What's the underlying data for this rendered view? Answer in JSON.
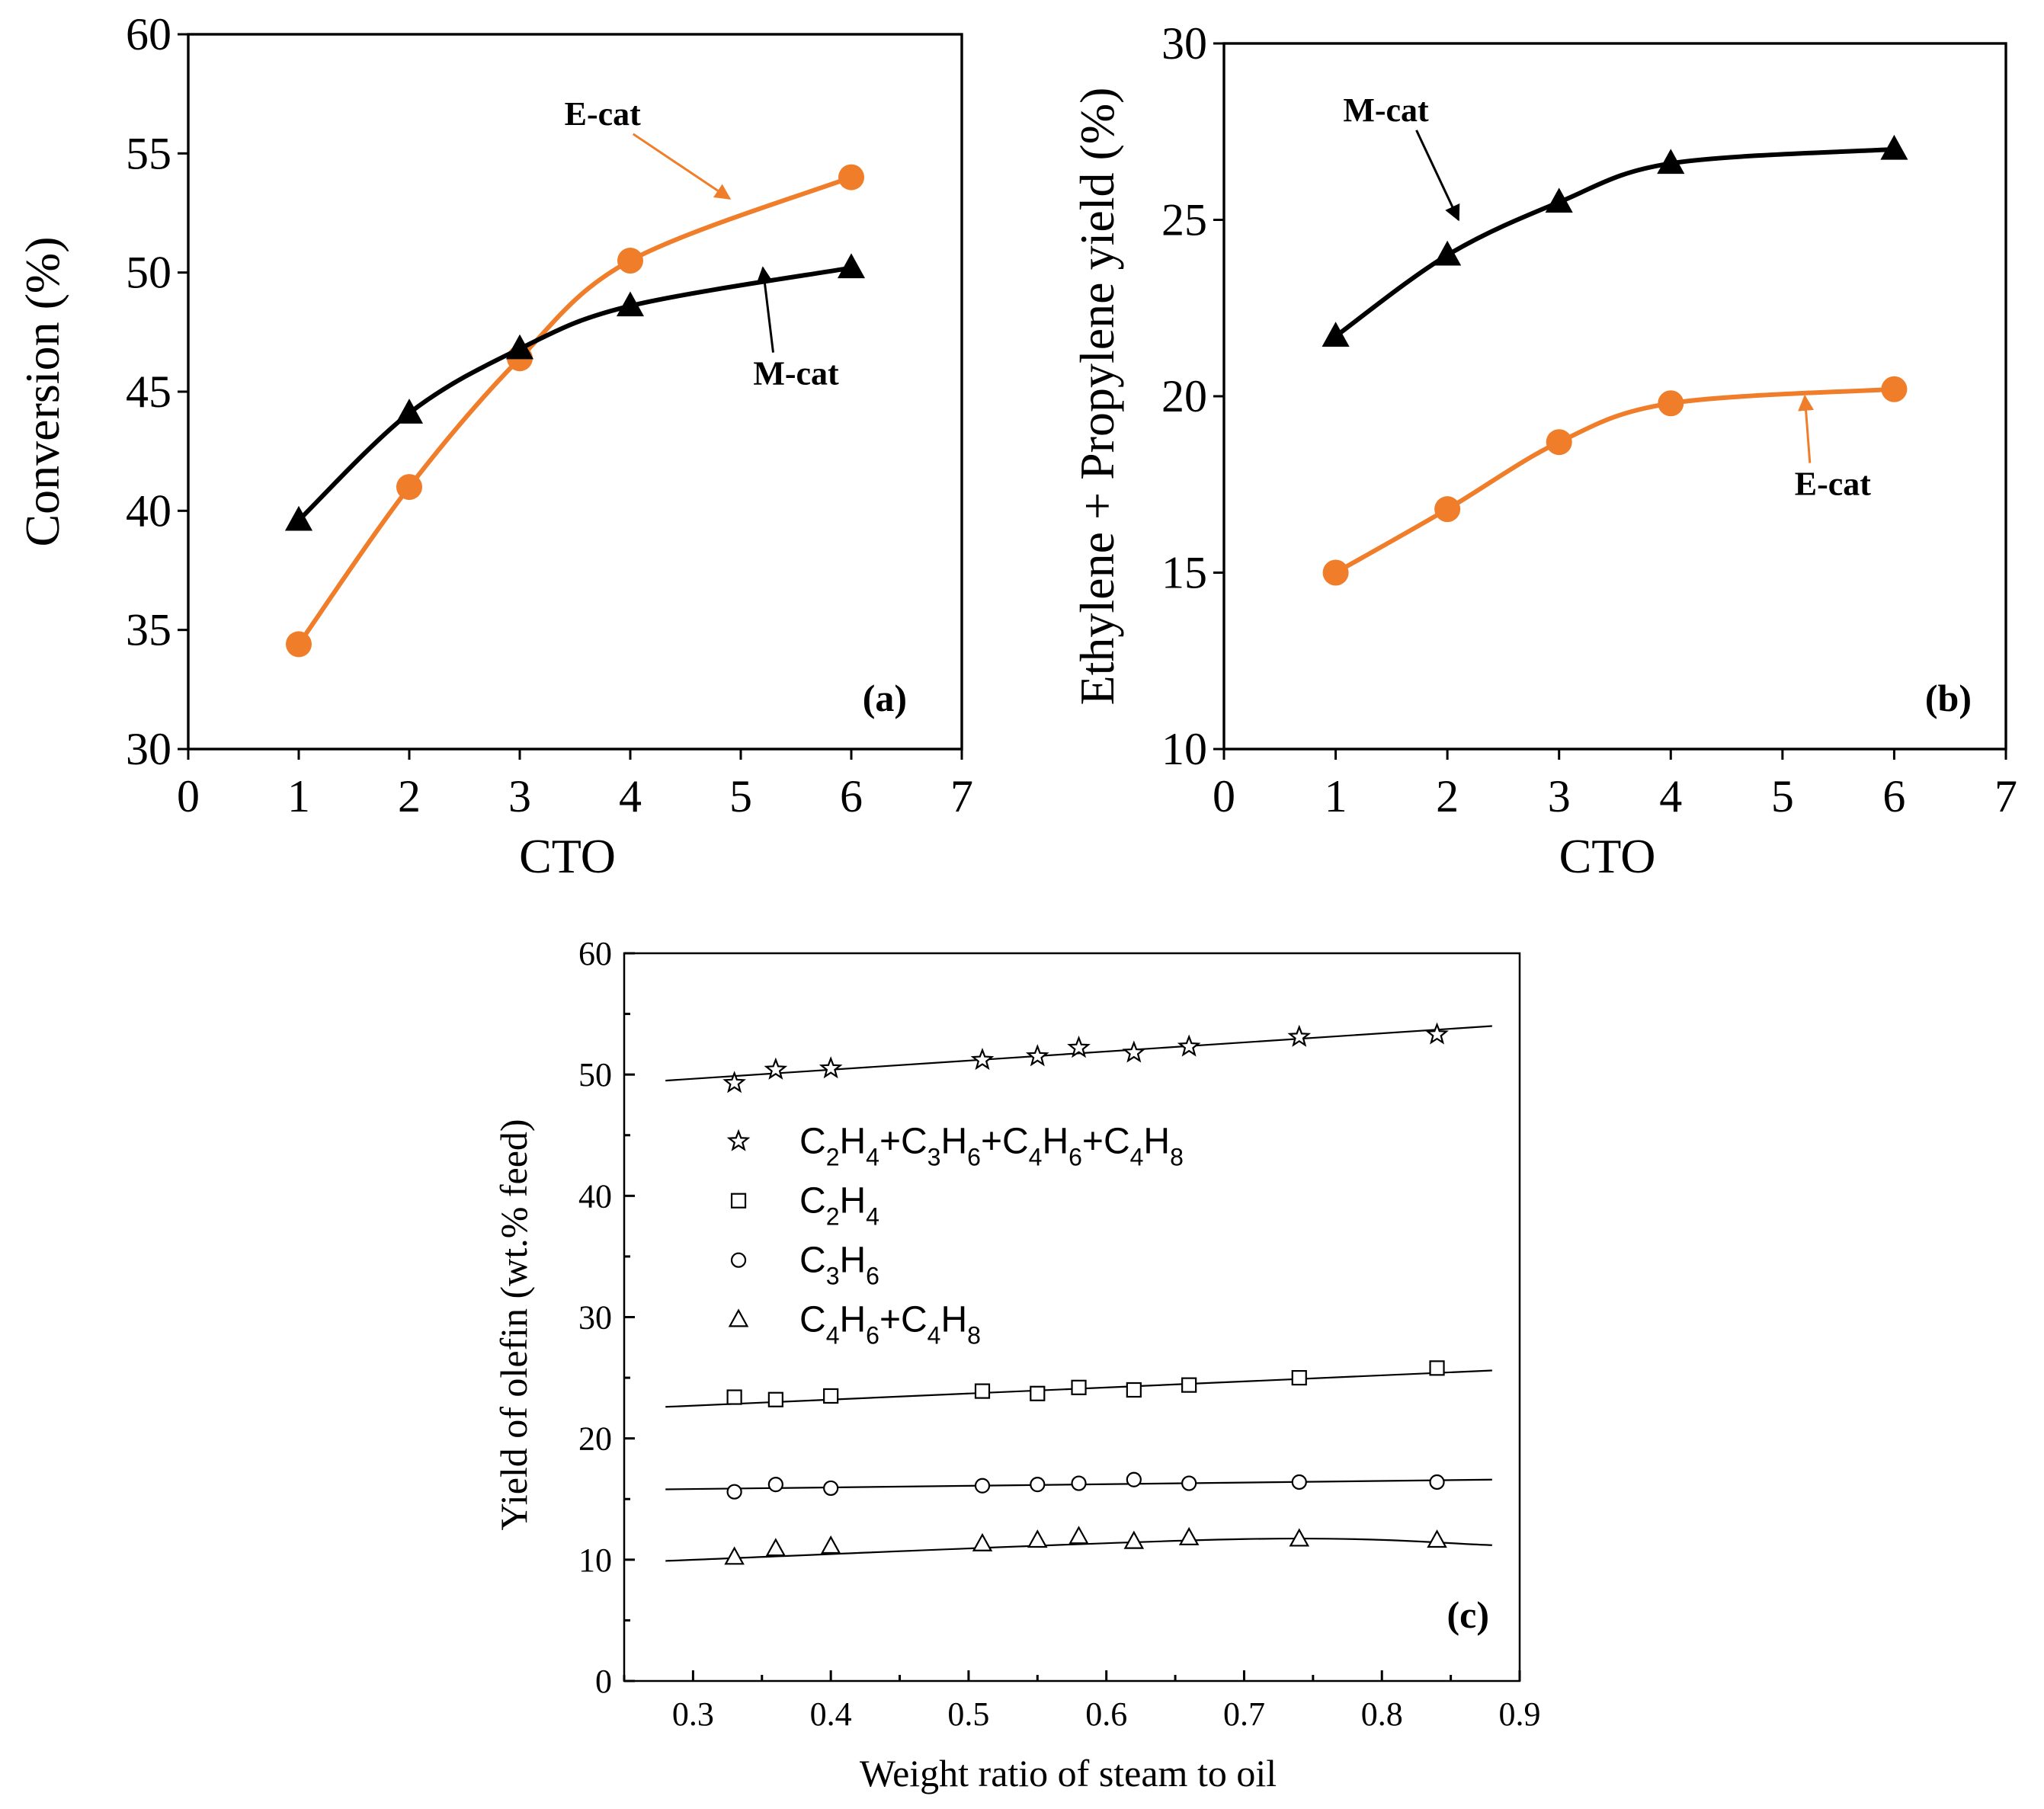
{
  "chart_data": [
    {
      "panel": "(a)",
      "type": "line",
      "xlabel": "CTO",
      "ylabel": "Conversion (%)",
      "xlim": [
        0,
        7
      ],
      "ylim": [
        30,
        60
      ],
      "xticks": [
        0,
        1,
        2,
        3,
        4,
        5,
        6,
        7
      ],
      "yticks": [
        30,
        35,
        40,
        45,
        50,
        55,
        60
      ],
      "series": [
        {
          "name": "E-cat",
          "color": "#f07d2a",
          "marker": "circle",
          "x": [
            1,
            2,
            3,
            4,
            6
          ],
          "y": [
            34.4,
            41.0,
            46.4,
            50.5,
            54.0
          ],
          "label_pos": {
            "x": 3.75,
            "y": 56.2
          },
          "arrow_to": {
            "x": 4.9,
            "y": 53.1
          }
        },
        {
          "name": "M-cat",
          "color": "#000000",
          "marker": "triangle",
          "x": [
            1,
            2,
            3,
            4,
            6
          ],
          "y": [
            39.6,
            44.1,
            46.8,
            48.6,
            50.2
          ],
          "label_pos": {
            "x": 5.5,
            "y": 45.3
          },
          "arrow_to": {
            "x": 5.2,
            "y": 50.2
          }
        }
      ]
    },
    {
      "panel": "(b)",
      "type": "line",
      "xlabel": "CTO",
      "ylabel": "Ethylene + Propylene yield (%)",
      "xlim": [
        0,
        7
      ],
      "ylim": [
        10,
        30
      ],
      "xticks": [
        0,
        1,
        2,
        3,
        4,
        5,
        6,
        7
      ],
      "yticks": [
        10,
        15,
        20,
        25,
        30
      ],
      "series": [
        {
          "name": "M-cat",
          "color": "#000000",
          "marker": "triangle",
          "x": [
            1,
            2,
            3,
            4,
            6
          ],
          "y": [
            21.7,
            24.0,
            25.5,
            26.6,
            27.0
          ],
          "label_pos": {
            "x": 1.45,
            "y": 27.8
          },
          "arrow_to": {
            "x": 2.1,
            "y": 25.0
          }
        },
        {
          "name": "E-cat",
          "color": "#f07d2a",
          "marker": "circle",
          "x": [
            1,
            2,
            3,
            4,
            6
          ],
          "y": [
            15.0,
            16.8,
            18.7,
            19.8,
            20.2
          ],
          "label_pos": {
            "x": 5.45,
            "y": 17.2
          },
          "arrow_to": {
            "x": 5.2,
            "y": 20.0
          }
        }
      ]
    },
    {
      "panel": "(c)",
      "type": "scatter",
      "xlabel": "Weight ratio of steam to oil",
      "ylabel": "Yield of olefin (wt.% feed)",
      "xlim": [
        0.25,
        0.9
      ],
      "ylim": [
        0,
        60
      ],
      "xticks": [
        0.3,
        0.4,
        0.5,
        0.6,
        0.7,
        0.8,
        0.9
      ],
      "xtick_labels": [
        "0.3",
        "0.4",
        "0.5",
        "0.6",
        "0.7",
        "0.8",
        "0.9"
      ],
      "yticks": [
        0,
        10,
        20,
        30,
        40,
        50,
        60
      ],
      "x": [
        0.33,
        0.36,
        0.4,
        0.51,
        0.55,
        0.58,
        0.62,
        0.66,
        0.74,
        0.84
      ],
      "series": [
        {
          "name": "C2H4+C3H6+C4H6+C4H8",
          "marker": "star",
          "y": [
            49.3,
            50.4,
            50.5,
            51.2,
            51.5,
            52.2,
            51.8,
            52.3,
            53.1,
            53.3
          ],
          "fit": [
            [
              0.28,
              49.5
            ],
            [
              0.88,
              54.0
            ]
          ]
        },
        {
          "name": "C2H4",
          "marker": "square",
          "y": [
            23.4,
            23.2,
            23.5,
            23.9,
            23.7,
            24.2,
            24.0,
            24.4,
            25.0,
            25.8
          ],
          "fit": [
            [
              0.28,
              22.6
            ],
            [
              0.88,
              25.6
            ]
          ]
        },
        {
          "name": "C3H6",
          "marker": "circle",
          "y": [
            15.6,
            16.2,
            15.9,
            16.1,
            16.2,
            16.3,
            16.6,
            16.3,
            16.4,
            16.4
          ],
          "fit": [
            [
              0.28,
              15.8
            ],
            [
              0.88,
              16.6
            ]
          ]
        },
        {
          "name": "C4H6+C4H8",
          "marker": "triangle",
          "y": [
            10.2,
            10.9,
            11.1,
            11.3,
            11.6,
            11.9,
            11.5,
            11.8,
            11.7,
            11.6
          ],
          "fit": [
            [
              0.28,
              9.9
            ],
            [
              0.7,
              11.7
            ],
            [
              0.88,
              11.2
            ]
          ]
        }
      ],
      "legend": {
        "placement": "upper-left",
        "entries": [
          {
            "marker": "star",
            "parts": [
              [
                "C",
                ""
              ],
              [
                "2",
                "sub"
              ],
              [
                "H",
                ""
              ],
              [
                "4",
                "sub"
              ],
              [
                "+C",
                ""
              ],
              [
                "3",
                "sub"
              ],
              [
                "H",
                ""
              ],
              [
                "6",
                "sub"
              ],
              [
                "+C",
                ""
              ],
              [
                "4",
                "sub"
              ],
              [
                "H",
                ""
              ],
              [
                "6",
                "sub"
              ],
              [
                "+C",
                ""
              ],
              [
                "4",
                "sub"
              ],
              [
                "H",
                ""
              ],
              [
                "8",
                "sub"
              ]
            ]
          },
          {
            "marker": "square",
            "parts": [
              [
                "C",
                ""
              ],
              [
                "2",
                "sub"
              ],
              [
                "H",
                ""
              ],
              [
                "4",
                "sub"
              ]
            ]
          },
          {
            "marker": "circle",
            "parts": [
              [
                "C",
                ""
              ],
              [
                "3",
                "sub"
              ],
              [
                "H",
                ""
              ],
              [
                "6",
                "sub"
              ]
            ]
          },
          {
            "marker": "triangle",
            "parts": [
              [
                "C",
                ""
              ],
              [
                "4",
                "sub"
              ],
              [
                "H",
                ""
              ],
              [
                "6",
                "sub"
              ],
              [
                "+C",
                ""
              ],
              [
                "4",
                "sub"
              ],
              [
                "H",
                ""
              ],
              [
                "8",
                "sub"
              ]
            ]
          }
        ]
      }
    }
  ]
}
